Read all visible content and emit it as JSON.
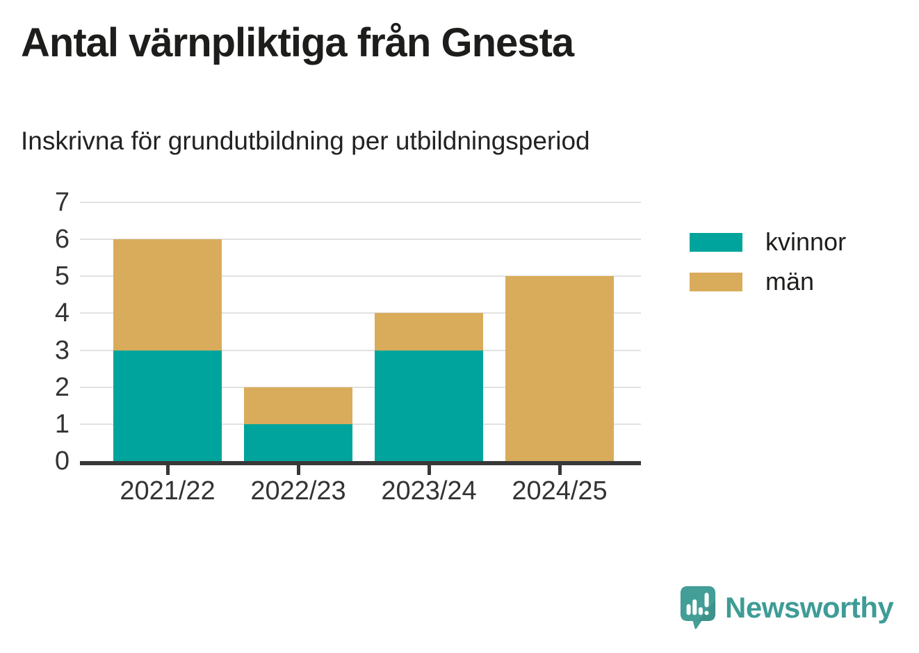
{
  "header": {
    "title": "Antal värnpliktiga från Gnesta",
    "subtitle": "Inskrivna för grundutbildning per utbildningsperiod"
  },
  "chart_data": {
    "type": "bar",
    "stacked": true,
    "title": "Antal värnpliktiga från Gnesta",
    "subtitle": "Inskrivna för grundutbildning per utbildningsperiod",
    "categories": [
      "2021/22",
      "2022/23",
      "2023/24",
      "2024/25"
    ],
    "series": [
      {
        "name": "kvinnor",
        "color": "#00a49c",
        "values": [
          3,
          1,
          3,
          0
        ]
      },
      {
        "name": "män",
        "color": "#d9ac5b",
        "values": [
          3,
          1,
          1,
          5
        ]
      }
    ],
    "totals": [
      6,
      2,
      4,
      5
    ],
    "xlabel": "",
    "ylabel": "",
    "ylim": [
      0,
      7
    ],
    "yticks": [
      0,
      1,
      2,
      3,
      4,
      5,
      6,
      7
    ],
    "grid": true,
    "legend_position": "right"
  },
  "legend": {
    "items": [
      {
        "label": "kvinnor",
        "color": "#00a49c"
      },
      {
        "label": "män",
        "color": "#d9ac5b"
      }
    ]
  },
  "brand": {
    "name": "Newsworthy",
    "color": "#3e9c96",
    "icon": "newsworthy-speech-bubble-chart-icon"
  },
  "colors": {
    "kvinnor": "#00a49c",
    "man": "#d9ac5b",
    "axis": "#383838",
    "tick_text": "#333333",
    "gridline": "#e1e1e1",
    "title_text": "#1d1d1b",
    "brand_teal": "#3e9c96"
  }
}
